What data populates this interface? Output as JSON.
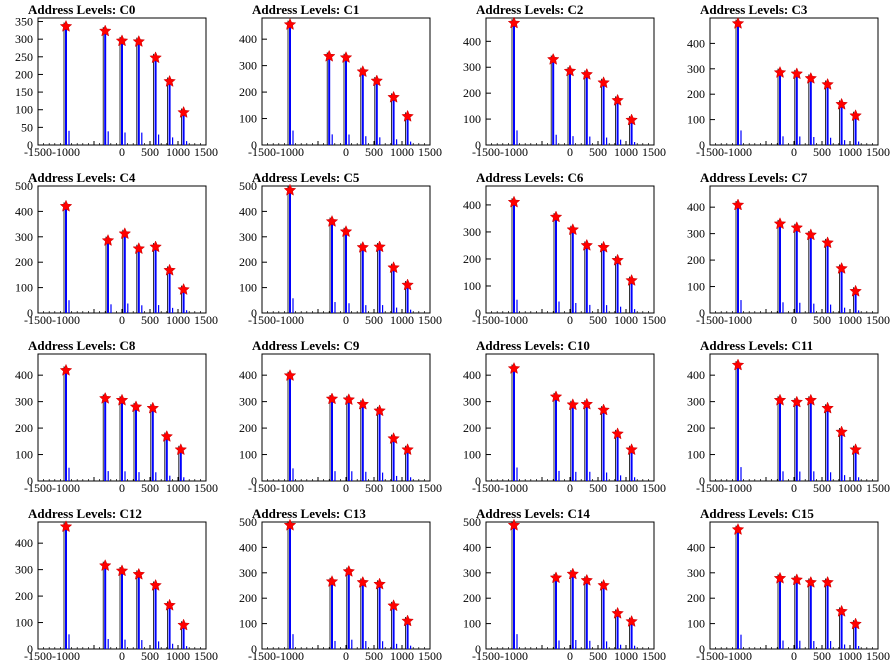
{
  "page_title": "",
  "colors": {
    "background": "#ffffff",
    "axis": "#000000",
    "histogram_line": "#0000ff",
    "histogram_outline": "#000000",
    "peak_marker": "#ff0000"
  },
  "icons": {
    "peak_marker": "red-star-marker"
  },
  "chart_data": [
    {
      "type": "histogram",
      "title": "Address Levels: C0",
      "xlabel": "",
      "ylabel": "",
      "xlim": [
        -1500,
        1500
      ],
      "ylim": [
        0,
        360
      ],
      "x_ticks": [
        -1500,
        -1000,
        -500,
        0,
        500,
        1000,
        1500
      ],
      "x_tick_labels": [
        "-1500",
        "-1000",
        "",
        "0",
        "500",
        "1000",
        "1500"
      ],
      "y_ticks": [
        0,
        50,
        100,
        150,
        200,
        250,
        300,
        350
      ],
      "y_tick_labels": [
        "0",
        "50",
        "100",
        "150",
        "200",
        "250",
        "300",
        "350"
      ],
      "peaks": [
        {
          "x": -1000,
          "y": 336
        },
        {
          "x": -300,
          "y": 323
        },
        {
          "x": 0,
          "y": 295
        },
        {
          "x": 300,
          "y": 293
        },
        {
          "x": 600,
          "y": 247
        },
        {
          "x": 850,
          "y": 180
        },
        {
          "x": 1100,
          "y": 92
        }
      ]
    },
    {
      "type": "histogram",
      "title": "Address Levels: C1",
      "xlabel": "",
      "ylabel": "",
      "xlim": [
        -1500,
        1500
      ],
      "ylim": [
        0,
        480
      ],
      "x_ticks": [
        -1500,
        -1000,
        -500,
        0,
        500,
        1000,
        1500
      ],
      "x_tick_labels": [
        "-1500",
        "-1000",
        "",
        "0",
        "500",
        "1000",
        "1500"
      ],
      "y_ticks": [
        0,
        100,
        200,
        300,
        400
      ],
      "y_tick_labels": [
        "0",
        "100",
        "200",
        "300",
        "400"
      ],
      "peaks": [
        {
          "x": -1000,
          "y": 455
        },
        {
          "x": -300,
          "y": 335
        },
        {
          "x": 0,
          "y": 330
        },
        {
          "x": 300,
          "y": 277
        },
        {
          "x": 550,
          "y": 242
        },
        {
          "x": 850,
          "y": 180
        },
        {
          "x": 1100,
          "y": 108
        }
      ]
    },
    {
      "type": "histogram",
      "title": "Address Levels: C2",
      "xlabel": "",
      "ylabel": "",
      "xlim": [
        -1500,
        1500
      ],
      "ylim": [
        0,
        490
      ],
      "x_ticks": [
        -1500,
        -1000,
        -500,
        0,
        500,
        1000,
        1500
      ],
      "x_tick_labels": [
        "-1500",
        "-1000",
        "",
        "0",
        "500",
        "1000",
        "1500"
      ],
      "y_ticks": [
        0,
        100,
        200,
        300,
        400
      ],
      "y_tick_labels": [
        "0",
        "100",
        "200",
        "300",
        "400"
      ],
      "peaks": [
        {
          "x": -1000,
          "y": 470
        },
        {
          "x": -300,
          "y": 330
        },
        {
          "x": 0,
          "y": 285
        },
        {
          "x": 300,
          "y": 272
        },
        {
          "x": 600,
          "y": 240
        },
        {
          "x": 850,
          "y": 172
        },
        {
          "x": 1100,
          "y": 96
        }
      ]
    },
    {
      "type": "histogram",
      "title": "Address Levels: C3",
      "xlabel": "",
      "ylabel": "",
      "xlim": [
        -1500,
        1500
      ],
      "ylim": [
        0,
        500
      ],
      "x_ticks": [
        -1500,
        -1000,
        -500,
        0,
        500,
        1000,
        1500
      ],
      "x_tick_labels": [
        "-1500",
        "-1000",
        "",
        "0",
        "500",
        "1000",
        "1500"
      ],
      "y_ticks": [
        0,
        100,
        200,
        300,
        400
      ],
      "y_tick_labels": [
        "0",
        "100",
        "200",
        "300",
        "400"
      ],
      "peaks": [
        {
          "x": -1000,
          "y": 478
        },
        {
          "x": -250,
          "y": 285
        },
        {
          "x": 50,
          "y": 280
        },
        {
          "x": 300,
          "y": 262
        },
        {
          "x": 600,
          "y": 238
        },
        {
          "x": 850,
          "y": 160
        },
        {
          "x": 1100,
          "y": 115
        }
      ]
    },
    {
      "type": "histogram",
      "title": "Address Levels: C4",
      "xlabel": "",
      "ylabel": "",
      "xlim": [
        -1500,
        1500
      ],
      "ylim": [
        0,
        500
      ],
      "x_ticks": [
        -1500,
        -1000,
        -500,
        0,
        500,
        1000,
        1500
      ],
      "x_tick_labels": [
        "-1500",
        "-1000",
        "",
        "0",
        "500",
        "1000",
        "1500"
      ],
      "y_ticks": [
        0,
        100,
        200,
        300,
        400,
        500
      ],
      "y_tick_labels": [
        "0",
        "100",
        "200",
        "300",
        "400",
        "500"
      ],
      "peaks": [
        {
          "x": -1000,
          "y": 420
        },
        {
          "x": -250,
          "y": 285
        },
        {
          "x": 50,
          "y": 312
        },
        {
          "x": 300,
          "y": 253
        },
        {
          "x": 600,
          "y": 260
        },
        {
          "x": 850,
          "y": 168
        },
        {
          "x": 1100,
          "y": 92
        }
      ]
    },
    {
      "type": "histogram",
      "title": "Address Levels: C5",
      "xlabel": "",
      "ylabel": "",
      "xlim": [
        -1500,
        1500
      ],
      "ylim": [
        0,
        500
      ],
      "x_ticks": [
        -1500,
        -1000,
        -500,
        0,
        500,
        1000,
        1500
      ],
      "x_tick_labels": [
        "-1500",
        "-1000",
        "",
        "0",
        "500",
        "1000",
        "1500"
      ],
      "y_ticks": [
        0,
        100,
        200,
        300,
        400,
        500
      ],
      "y_tick_labels": [
        "0",
        "100",
        "200",
        "300",
        "400",
        "500"
      ],
      "peaks": [
        {
          "x": -1000,
          "y": 483
        },
        {
          "x": -250,
          "y": 360
        },
        {
          "x": 0,
          "y": 320
        },
        {
          "x": 300,
          "y": 258
        },
        {
          "x": 600,
          "y": 260
        },
        {
          "x": 850,
          "y": 178
        },
        {
          "x": 1100,
          "y": 110
        }
      ]
    },
    {
      "type": "histogram",
      "title": "Address Levels: C6",
      "xlabel": "",
      "ylabel": "",
      "xlim": [
        -1500,
        1500
      ],
      "ylim": [
        0,
        470
      ],
      "x_ticks": [
        -1500,
        -1000,
        -500,
        0,
        500,
        1000,
        1500
      ],
      "x_tick_labels": [
        "-1500",
        "-1000",
        "",
        "0",
        "500",
        "1000",
        "1500"
      ],
      "y_ticks": [
        0,
        100,
        200,
        300,
        400
      ],
      "y_tick_labels": [
        "0",
        "100",
        "200",
        "300",
        "400"
      ],
      "peaks": [
        {
          "x": -1000,
          "y": 410
        },
        {
          "x": -250,
          "y": 355
        },
        {
          "x": 50,
          "y": 308
        },
        {
          "x": 300,
          "y": 250
        },
        {
          "x": 600,
          "y": 243
        },
        {
          "x": 850,
          "y": 195
        },
        {
          "x": 1100,
          "y": 120
        }
      ]
    },
    {
      "type": "histogram",
      "title": "Address Levels: C7",
      "xlabel": "",
      "ylabel": "",
      "xlim": [
        -1500,
        1500
      ],
      "ylim": [
        0,
        480
      ],
      "x_ticks": [
        -1500,
        -1000,
        -500,
        0,
        500,
        1000,
        1500
      ],
      "x_tick_labels": [
        "-1500",
        "-1000",
        "",
        "0",
        "500",
        "1000",
        "1500"
      ],
      "y_ticks": [
        0,
        100,
        200,
        300,
        400
      ],
      "y_tick_labels": [
        "0",
        "100",
        "200",
        "300",
        "400"
      ],
      "peaks": [
        {
          "x": -1000,
          "y": 408
        },
        {
          "x": -250,
          "y": 337
        },
        {
          "x": 50,
          "y": 322
        },
        {
          "x": 300,
          "y": 295
        },
        {
          "x": 600,
          "y": 265
        },
        {
          "x": 850,
          "y": 168
        },
        {
          "x": 1100,
          "y": 82
        }
      ]
    },
    {
      "type": "histogram",
      "title": "Address Levels: C8",
      "xlabel": "",
      "ylabel": "",
      "xlim": [
        -1500,
        1500
      ],
      "ylim": [
        0,
        480
      ],
      "x_ticks": [
        -1500,
        -1000,
        -500,
        0,
        500,
        1000,
        1500
      ],
      "x_tick_labels": [
        "-1500",
        "-1000",
        "",
        "0",
        "500",
        "1000",
        "1500"
      ],
      "y_ticks": [
        0,
        100,
        200,
        300,
        400
      ],
      "y_tick_labels": [
        "0",
        "100",
        "200",
        "300",
        "400"
      ],
      "peaks": [
        {
          "x": -1000,
          "y": 418
        },
        {
          "x": -300,
          "y": 312
        },
        {
          "x": 0,
          "y": 305
        },
        {
          "x": 250,
          "y": 280
        },
        {
          "x": 550,
          "y": 275
        },
        {
          "x": 800,
          "y": 168
        },
        {
          "x": 1050,
          "y": 118
        }
      ]
    },
    {
      "type": "histogram",
      "title": "Address Levels: C9",
      "xlabel": "",
      "ylabel": "",
      "xlim": [
        -1500,
        1500
      ],
      "ylim": [
        0,
        480
      ],
      "x_ticks": [
        -1500,
        -1000,
        -500,
        0,
        500,
        1000,
        1500
      ],
      "x_tick_labels": [
        "-1500",
        "-1000",
        "",
        "0",
        "500",
        "1000",
        "1500"
      ],
      "y_ticks": [
        0,
        100,
        200,
        300,
        400
      ],
      "y_tick_labels": [
        "0",
        "100",
        "200",
        "300",
        "400"
      ],
      "peaks": [
        {
          "x": -1000,
          "y": 398
        },
        {
          "x": -250,
          "y": 310
        },
        {
          "x": 50,
          "y": 307
        },
        {
          "x": 300,
          "y": 290
        },
        {
          "x": 600,
          "y": 265
        },
        {
          "x": 850,
          "y": 160
        },
        {
          "x": 1100,
          "y": 118
        }
      ]
    },
    {
      "type": "histogram",
      "title": "Address Levels: C10",
      "xlabel": "",
      "ylabel": "",
      "xlim": [
        -1500,
        1500
      ],
      "ylim": [
        0,
        480
      ],
      "x_ticks": [
        -1500,
        -1000,
        -500,
        0,
        500,
        1000,
        1500
      ],
      "x_tick_labels": [
        "-1500",
        "-1000",
        "",
        "0",
        "500",
        "1000",
        "1500"
      ],
      "y_ticks": [
        0,
        100,
        200,
        300,
        400
      ],
      "y_tick_labels": [
        "0",
        "100",
        "200",
        "300",
        "400"
      ],
      "peaks": [
        {
          "x": -1000,
          "y": 425
        },
        {
          "x": -250,
          "y": 318
        },
        {
          "x": 50,
          "y": 288
        },
        {
          "x": 300,
          "y": 290
        },
        {
          "x": 600,
          "y": 268
        },
        {
          "x": 850,
          "y": 178
        },
        {
          "x": 1100,
          "y": 118
        }
      ]
    },
    {
      "type": "histogram",
      "title": "Address Levels: C11",
      "xlabel": "",
      "ylabel": "",
      "xlim": [
        -1500,
        1500
      ],
      "ylim": [
        0,
        480
      ],
      "x_ticks": [
        -1500,
        -1000,
        -500,
        0,
        500,
        1000,
        1500
      ],
      "x_tick_labels": [
        "-1500",
        "-1000",
        "",
        "0",
        "500",
        "1000",
        "1500"
      ],
      "y_ticks": [
        0,
        100,
        200,
        300,
        400
      ],
      "y_tick_labels": [
        "0",
        "100",
        "200",
        "300",
        "400"
      ],
      "peaks": [
        {
          "x": -1000,
          "y": 438
        },
        {
          "x": -250,
          "y": 305
        },
        {
          "x": 50,
          "y": 298
        },
        {
          "x": 300,
          "y": 305
        },
        {
          "x": 600,
          "y": 275
        },
        {
          "x": 850,
          "y": 185
        },
        {
          "x": 1100,
          "y": 118
        }
      ]
    },
    {
      "type": "histogram",
      "title": "Address Levels: C12",
      "xlabel": "",
      "ylabel": "",
      "xlim": [
        -1500,
        1500
      ],
      "ylim": [
        0,
        480
      ],
      "x_ticks": [
        -1500,
        -1000,
        -500,
        0,
        500,
        1000,
        1500
      ],
      "x_tick_labels": [
        "-1500",
        "-1000",
        "",
        "0",
        "500",
        "1000",
        "1500"
      ],
      "y_ticks": [
        0,
        100,
        200,
        300,
        400
      ],
      "y_tick_labels": [
        "0",
        "100",
        "200",
        "300",
        "400"
      ],
      "peaks": [
        {
          "x": -1000,
          "y": 462
        },
        {
          "x": -300,
          "y": 315
        },
        {
          "x": 0,
          "y": 295
        },
        {
          "x": 300,
          "y": 282
        },
        {
          "x": 600,
          "y": 240
        },
        {
          "x": 850,
          "y": 165
        },
        {
          "x": 1100,
          "y": 90
        }
      ]
    },
    {
      "type": "histogram",
      "title": "Address Levels: C13",
      "xlabel": "",
      "ylabel": "",
      "xlim": [
        -1500,
        1500
      ],
      "ylim": [
        0,
        500
      ],
      "x_ticks": [
        -1500,
        -1000,
        -500,
        0,
        500,
        1000,
        1500
      ],
      "x_tick_labels": [
        "-1500",
        "-1000",
        "",
        "0",
        "500",
        "1000",
        "1500"
      ],
      "y_ticks": [
        0,
        100,
        200,
        300,
        400,
        500
      ],
      "y_tick_labels": [
        "0",
        "100",
        "200",
        "300",
        "400",
        "500"
      ],
      "peaks": [
        {
          "x": -1000,
          "y": 487
        },
        {
          "x": -250,
          "y": 265
        },
        {
          "x": 50,
          "y": 305
        },
        {
          "x": 300,
          "y": 262
        },
        {
          "x": 600,
          "y": 255
        },
        {
          "x": 850,
          "y": 170
        },
        {
          "x": 1100,
          "y": 110
        }
      ]
    },
    {
      "type": "histogram",
      "title": "Address Levels: C14",
      "xlabel": "",
      "ylabel": "",
      "xlim": [
        -1500,
        1500
      ],
      "ylim": [
        0,
        500
      ],
      "x_ticks": [
        -1500,
        -1000,
        -500,
        0,
        500,
        1000,
        1500
      ],
      "x_tick_labels": [
        "-1500",
        "-1000",
        "",
        "0",
        "500",
        "1000",
        "1500"
      ],
      "y_ticks": [
        0,
        100,
        200,
        300,
        400,
        500
      ],
      "y_tick_labels": [
        "0",
        "100",
        "200",
        "300",
        "400",
        "500"
      ],
      "peaks": [
        {
          "x": -1000,
          "y": 487
        },
        {
          "x": -250,
          "y": 280
        },
        {
          "x": 50,
          "y": 295
        },
        {
          "x": 300,
          "y": 270
        },
        {
          "x": 600,
          "y": 250
        },
        {
          "x": 850,
          "y": 140
        },
        {
          "x": 1100,
          "y": 108
        }
      ]
    },
    {
      "type": "histogram",
      "title": "Address Levels: C15",
      "xlabel": "",
      "ylabel": "",
      "xlim": [
        -1500,
        1500
      ],
      "ylim": [
        0,
        500
      ],
      "x_ticks": [
        -1500,
        -1000,
        -500,
        0,
        500,
        1000,
        1500
      ],
      "x_tick_labels": [
        "-1500",
        "-1000",
        "",
        "0",
        "500",
        "1000",
        "1500"
      ],
      "y_ticks": [
        0,
        100,
        200,
        300,
        400
      ],
      "y_tick_labels": [
        "0",
        "100",
        "200",
        "300",
        "400"
      ],
      "peaks": [
        {
          "x": -1000,
          "y": 470
        },
        {
          "x": -250,
          "y": 278
        },
        {
          "x": 50,
          "y": 272
        },
        {
          "x": 300,
          "y": 262
        },
        {
          "x": 600,
          "y": 262
        },
        {
          "x": 850,
          "y": 148
        },
        {
          "x": 1100,
          "y": 98
        }
      ]
    }
  ]
}
